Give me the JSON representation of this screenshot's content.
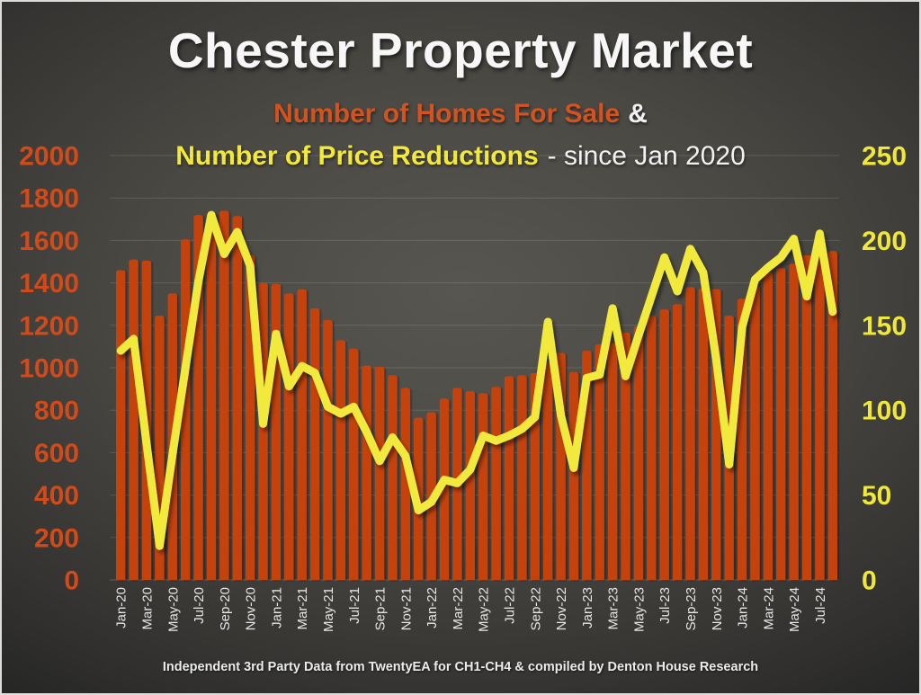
{
  "slide": {
    "title": "Chester Property Market",
    "subtitle": {
      "series1_label": "Number of Homes For Sale",
      "ampersand": "&",
      "series2_label": "Number of Price Reductions",
      "suffix": "- since Jan 2020"
    },
    "footer": "Independent 3rd Party Data from TwentyEA for CH1-CH4 & compiled by Denton House Research"
  },
  "colors": {
    "bar_fill": "#c5420e",
    "line_stroke": "#f2e93c",
    "left_axis_text": "#d14a19",
    "right_axis_text": "#f0e838",
    "x_axis_text": "#e6e6e6",
    "gridline": "rgba(255,255,255,0.13)",
    "baseline": "rgba(255,255,255,0.22)"
  },
  "chart_data": {
    "type": "bar",
    "subtype": "bar-and-line-dual-axis",
    "title": "Chester Property Market",
    "grid": "horizontal",
    "legend": "encoded-in-subtitle-colors",
    "categories": [
      "Jan-20",
      "Feb-20",
      "Mar-20",
      "Apr-20",
      "May-20",
      "Jun-20",
      "Jul-20",
      "Aug-20",
      "Sep-20",
      "Oct-20",
      "Nov-20",
      "Dec-20",
      "Jan-21",
      "Feb-21",
      "Mar-21",
      "Apr-21",
      "May-21",
      "Jun-21",
      "Jul-21",
      "Aug-21",
      "Sep-21",
      "Oct-21",
      "Nov-21",
      "Dec-21",
      "Jan-22",
      "Feb-22",
      "Mar-22",
      "Apr-22",
      "May-22",
      "Jun-22",
      "Jul-22",
      "Aug-22",
      "Sep-22",
      "Oct-22",
      "Nov-22",
      "Dec-22",
      "Jan-23",
      "Feb-23",
      "Mar-23",
      "Apr-23",
      "May-23",
      "Jun-23",
      "Jul-23",
      "Aug-23",
      "Sep-23",
      "Oct-23",
      "Nov-23",
      "Dec-23",
      "Jan-24",
      "Feb-24",
      "Mar-24",
      "Apr-24",
      "May-24",
      "Jun-24",
      "Jul-24",
      "Aug-24"
    ],
    "x_tick_labels": [
      "Jan-20",
      "Mar-20",
      "May-20",
      "Jul-20",
      "Sep-20",
      "Nov-20",
      "Jan-21",
      "Mar-21",
      "May-21",
      "Jul-21",
      "Sep-21",
      "Nov-21",
      "Jan-22",
      "Mar-22",
      "May-22",
      "Jul-22",
      "Sep-22",
      "Nov-22",
      "Jan-23",
      "Mar-23",
      "May-23",
      "Jul-23",
      "Sep-23",
      "Nov-23",
      "Jan-24",
      "Mar-24",
      "May-24",
      "Jul-24"
    ],
    "series": [
      {
        "name": "Number of Homes For Sale",
        "type": "bar",
        "axis": "left",
        "color": "#c5420e",
        "values": [
          1460,
          1510,
          1505,
          1245,
          1350,
          1605,
          1720,
          1730,
          1740,
          1715,
          1530,
          1400,
          1395,
          1350,
          1370,
          1280,
          1225,
          1130,
          1090,
          1010,
          1005,
          965,
          905,
          765,
          790,
          855,
          905,
          890,
          880,
          910,
          960,
          965,
          975,
          1025,
          1070,
          980,
          1080,
          1110,
          1115,
          1165,
          1195,
          1245,
          1275,
          1300,
          1380,
          1375,
          1370,
          1245,
          1325,
          1385,
          1450,
          1470,
          1490,
          1530,
          1540,
          1550
        ]
      },
      {
        "name": "Number of Price Reductions",
        "type": "line",
        "axis": "right",
        "color": "#f2e93c",
        "values": [
          135,
          142,
          80,
          20,
          74,
          125,
          176,
          215,
          192,
          205,
          185,
          92,
          145,
          114,
          126,
          122,
          102,
          98,
          102,
          87,
          70,
          84,
          73,
          41,
          46,
          59,
          57,
          65,
          85,
          82,
          85,
          89,
          96,
          152,
          97,
          66,
          119,
          121,
          160,
          120,
          144,
          167,
          190,
          170,
          195,
          181,
          130,
          68,
          149,
          177,
          184,
          190,
          201,
          167,
          204,
          158
        ]
      }
    ],
    "left_axis": {
      "min": 0,
      "max": 2000,
      "step": 200,
      "ticks": [
        0,
        200,
        400,
        600,
        800,
        1000,
        1200,
        1400,
        1600,
        1800,
        2000
      ]
    },
    "right_axis": {
      "min": 0,
      "max": 250,
      "step": 50,
      "ticks": [
        0,
        50,
        100,
        150,
        200,
        250
      ]
    }
  }
}
